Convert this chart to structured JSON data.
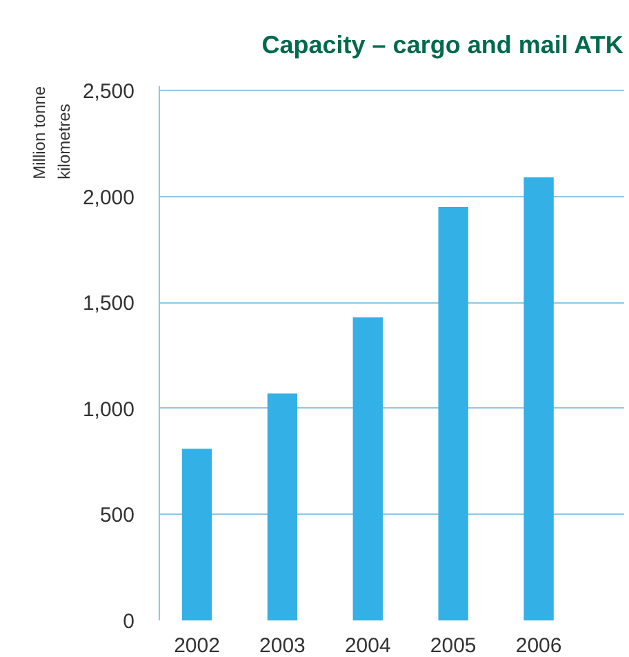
{
  "chart_data": {
    "type": "bar",
    "title": "Capacity – cargo and mail ATK",
    "ylabel": "Million tonne kilometres",
    "categories": [
      "2002",
      "2003",
      "2004",
      "2005",
      "2006"
    ],
    "values": [
      810,
      1070,
      1430,
      1950,
      2090
    ],
    "color": "#33b0e6",
    "ylim": [
      0,
      2520
    ],
    "yticks": [
      0,
      {
        "value": 500,
        "label": "500"
      },
      {
        "value": 1000,
        "label": "1,000"
      },
      {
        "value": 1500,
        "label": "1,500"
      },
      {
        "value": 2000,
        "label": "2,000"
      },
      {
        "value": 2500,
        "label": "2,500"
      }
    ],
    "grid": "y"
  }
}
